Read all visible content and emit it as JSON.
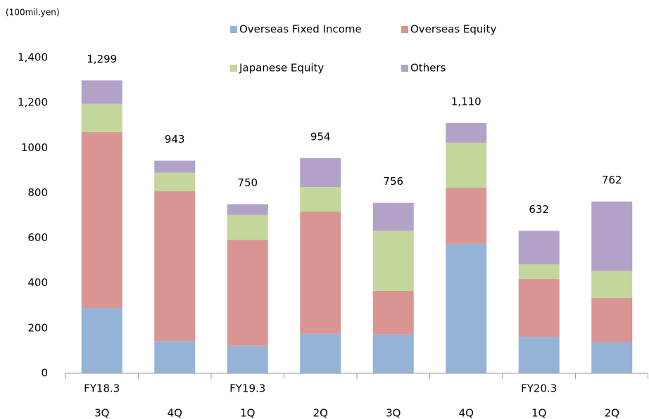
{
  "chart_data": {
    "type": "stacked_bar",
    "unit_label": "(100mil.yen)",
    "fiscal_years": [
      "FY18.3",
      null,
      "FY19.3",
      null,
      null,
      null,
      "FY20.3",
      null
    ],
    "categories": [
      "3Q",
      "4Q",
      "1Q",
      "2Q",
      "3Q",
      "4Q",
      "1Q",
      "2Q"
    ],
    "series": [
      {
        "name": "Overseas Fixed Income",
        "color": "#95b3d7",
        "values": [
          290,
          143,
          122,
          175,
          172,
          574,
          162,
          137
        ]
      },
      {
        "name": "Overseas Equity",
        "color": "#d99594",
        "values": [
          780,
          665,
          470,
          542,
          193,
          249,
          256,
          197
        ]
      },
      {
        "name": "Japanese Equity",
        "color": "#c3d69b",
        "values": [
          125,
          82,
          110,
          109,
          268,
          200,
          65,
          121
        ]
      },
      {
        "name": "Others",
        "color": "#b3a2c7",
        "values": [
          104,
          53,
          48,
          128,
          123,
          87,
          149,
          307
        ]
      }
    ],
    "totals": [
      1299,
      943,
      750,
      954,
      756,
      1110,
      632,
      762
    ],
    "total_labels": [
      "1,299",
      "943",
      "750",
      "954",
      "756",
      "1,110",
      "632",
      "762"
    ],
    "ylim": [
      0,
      1400
    ],
    "yticks": [
      0,
      200,
      400,
      600,
      800,
      1000,
      {
        "value": 1200,
        "label": "1,200"
      },
      {
        "value": 1400,
        "label": "1,400"
      }
    ],
    "grid": false
  }
}
